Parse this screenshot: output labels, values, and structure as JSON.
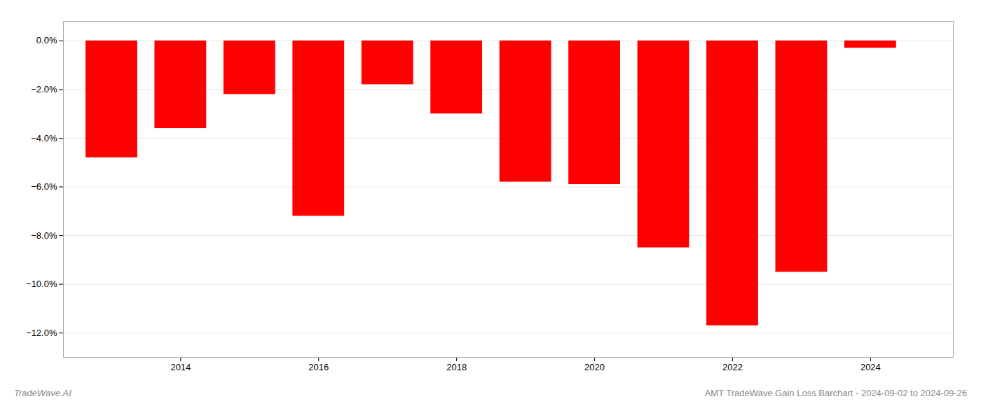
{
  "chart_data": {
    "type": "bar",
    "x": [
      2013,
      2014,
      2015,
      2016,
      2017,
      2018,
      2019,
      2020,
      2021,
      2022,
      2023,
      2024
    ],
    "values": [
      -4.8,
      -3.6,
      -2.2,
      -7.2,
      -1.8,
      -3.0,
      -5.8,
      -5.9,
      -8.5,
      -11.7,
      -9.5,
      -0.3
    ],
    "color": "#ff0000",
    "xlim": [
      2012.3,
      2025.2
    ],
    "xticks": [
      2014,
      2016,
      2018,
      2020,
      2022,
      2024
    ],
    "ylim": [
      -13.0,
      0.8
    ],
    "yticks": [
      {
        "value": 0.0,
        "label": "0.0%"
      },
      {
        "value": -2.0,
        "label": "−2.0%"
      },
      {
        "value": -4.0,
        "label": "−4.0%"
      },
      {
        "value": -6.0,
        "label": "−6.0%"
      },
      {
        "value": -8.0,
        "label": "−8.0%"
      },
      {
        "value": -10.0,
        "label": "−10.0%"
      },
      {
        "value": -12.0,
        "label": "−12.0%"
      }
    ],
    "grid": true,
    "annotations": [
      "TradeWave.AI",
      "AMT TradeWave Gain Loss Barchart - 2024-09-02 to 2024-09-26"
    ]
  }
}
